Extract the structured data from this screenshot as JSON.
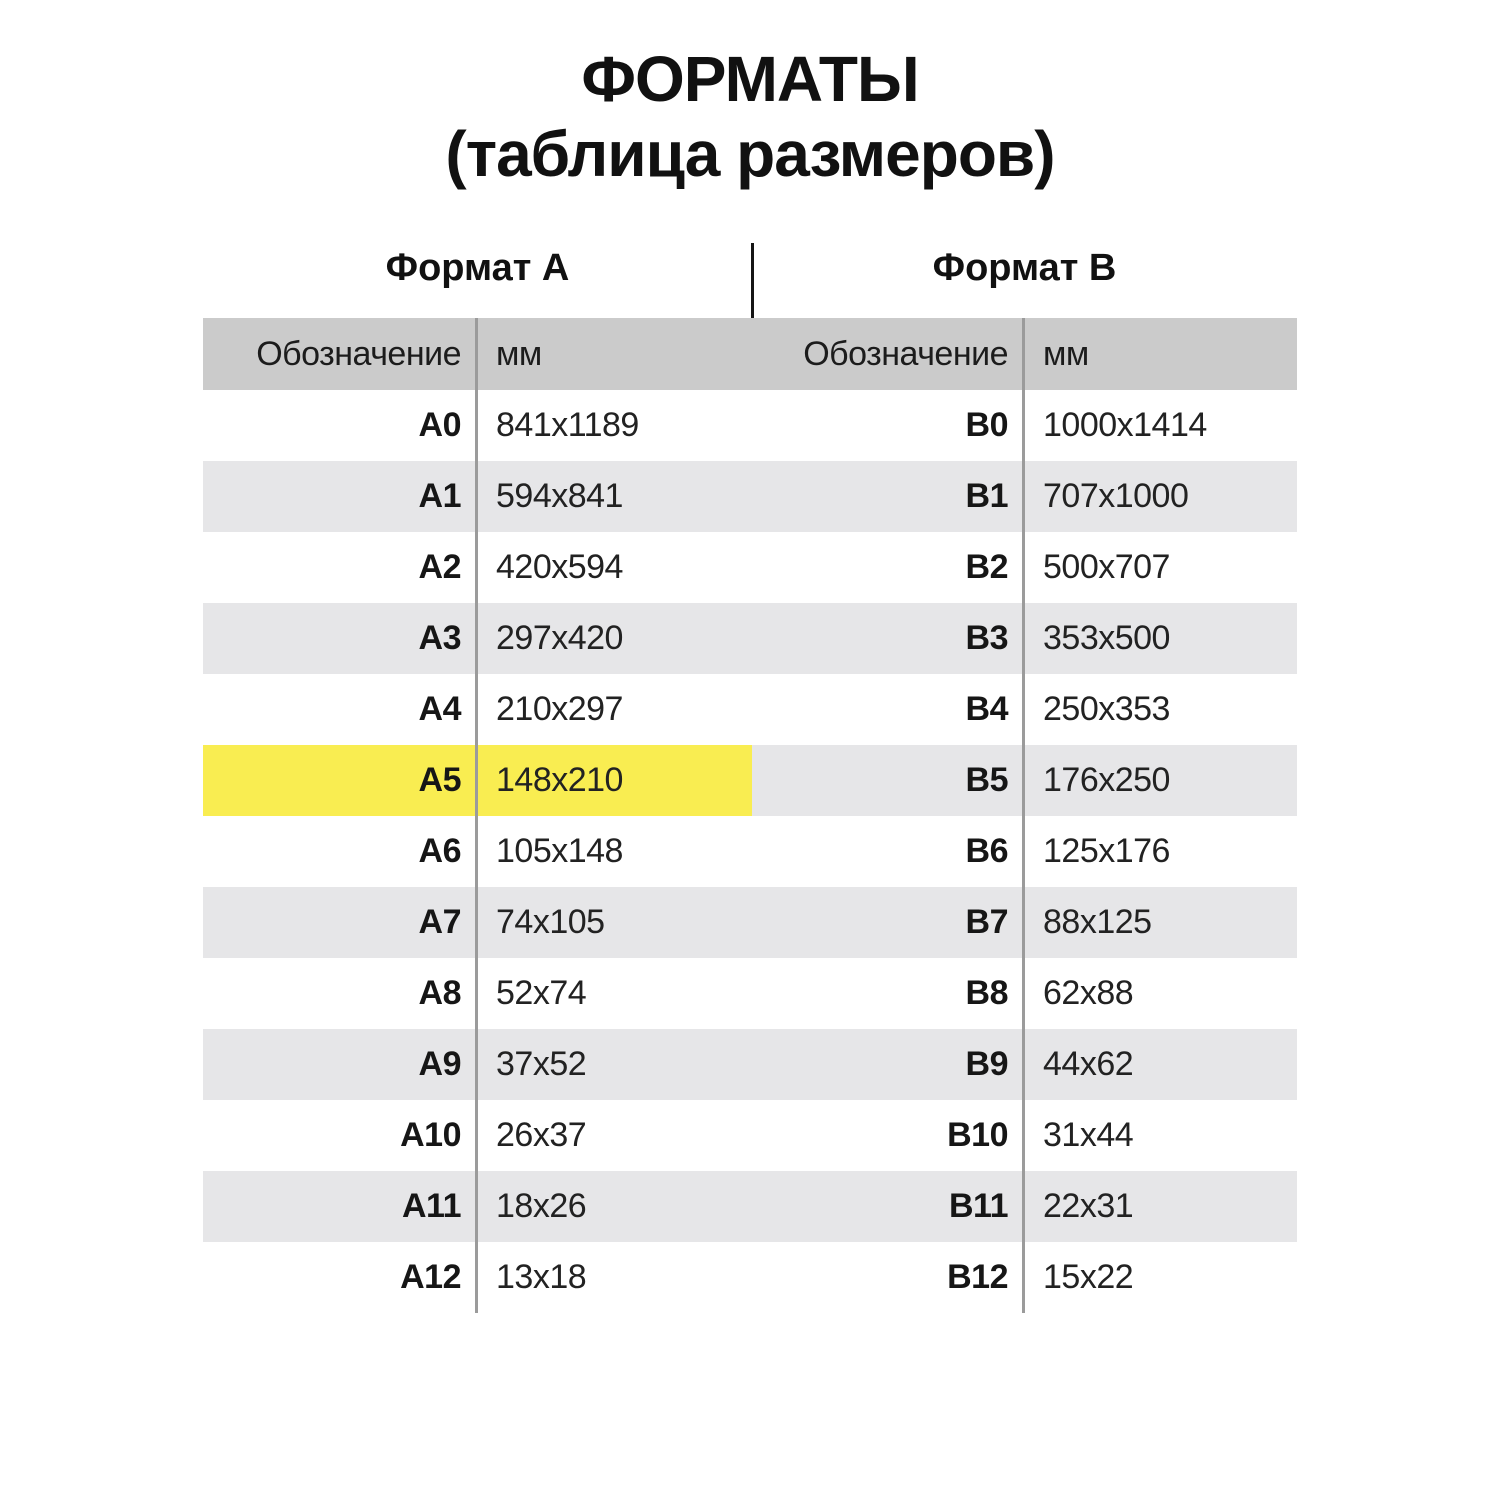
{
  "title": {
    "line1": "ФОРМАТЫ",
    "line2": "(таблица размеров)"
  },
  "colors": {
    "header_bg": "#cbcbcb",
    "row_gray": "#e6e6e8",
    "highlight_yellow": "#f9ed51",
    "line_black": "#151515",
    "line_gray": "#9b9b9b"
  },
  "tables": [
    {
      "title": "Формат А",
      "columns": {
        "designation": "Обозначение",
        "mm": "мм"
      },
      "rows": [
        {
          "designation": "A0",
          "mm": "841x1189",
          "highlight": false
        },
        {
          "designation": "A1",
          "mm": "594x841",
          "highlight": false
        },
        {
          "designation": "A2",
          "mm": "420x594",
          "highlight": false
        },
        {
          "designation": "A3",
          "mm": "297x420",
          "highlight": false
        },
        {
          "designation": "A4",
          "mm": "210x297",
          "highlight": false
        },
        {
          "designation": "A5",
          "mm": "148x210",
          "highlight": true
        },
        {
          "designation": "A6",
          "mm": "105x148",
          "highlight": false
        },
        {
          "designation": "A7",
          "mm": "74x105",
          "highlight": false
        },
        {
          "designation": "A8",
          "mm": "52x74",
          "highlight": false
        },
        {
          "designation": "A9",
          "mm": "37x52",
          "highlight": false
        },
        {
          "designation": "A10",
          "mm": "26x37",
          "highlight": false
        },
        {
          "designation": "A11",
          "mm": "18x26",
          "highlight": false
        },
        {
          "designation": "A12",
          "mm": "13x18",
          "highlight": false
        }
      ]
    },
    {
      "title": "Формат B",
      "columns": {
        "designation": "Обозначение",
        "mm": "мм"
      },
      "rows": [
        {
          "designation": "B0",
          "mm": "1000x1414",
          "highlight": false
        },
        {
          "designation": "B1",
          "mm": "707x1000",
          "highlight": false
        },
        {
          "designation": "B2",
          "mm": "500x707",
          "highlight": false
        },
        {
          "designation": "B3",
          "mm": "353x500",
          "highlight": false
        },
        {
          "designation": "B4",
          "mm": "250x353",
          "highlight": false
        },
        {
          "designation": "B5",
          "mm": "176x250",
          "highlight": false
        },
        {
          "designation": "B6",
          "mm": "125x176",
          "highlight": false
        },
        {
          "designation": "B7",
          "mm": "88x125",
          "highlight": false
        },
        {
          "designation": "B8",
          "mm": "62x88",
          "highlight": false
        },
        {
          "designation": "B9",
          "mm": "44x62",
          "highlight": false
        },
        {
          "designation": "B10",
          "mm": "31x44",
          "highlight": false
        },
        {
          "designation": "B11",
          "mm": "22x31",
          "highlight": false
        },
        {
          "designation": "B12",
          "mm": "15x22",
          "highlight": false
        }
      ]
    }
  ]
}
